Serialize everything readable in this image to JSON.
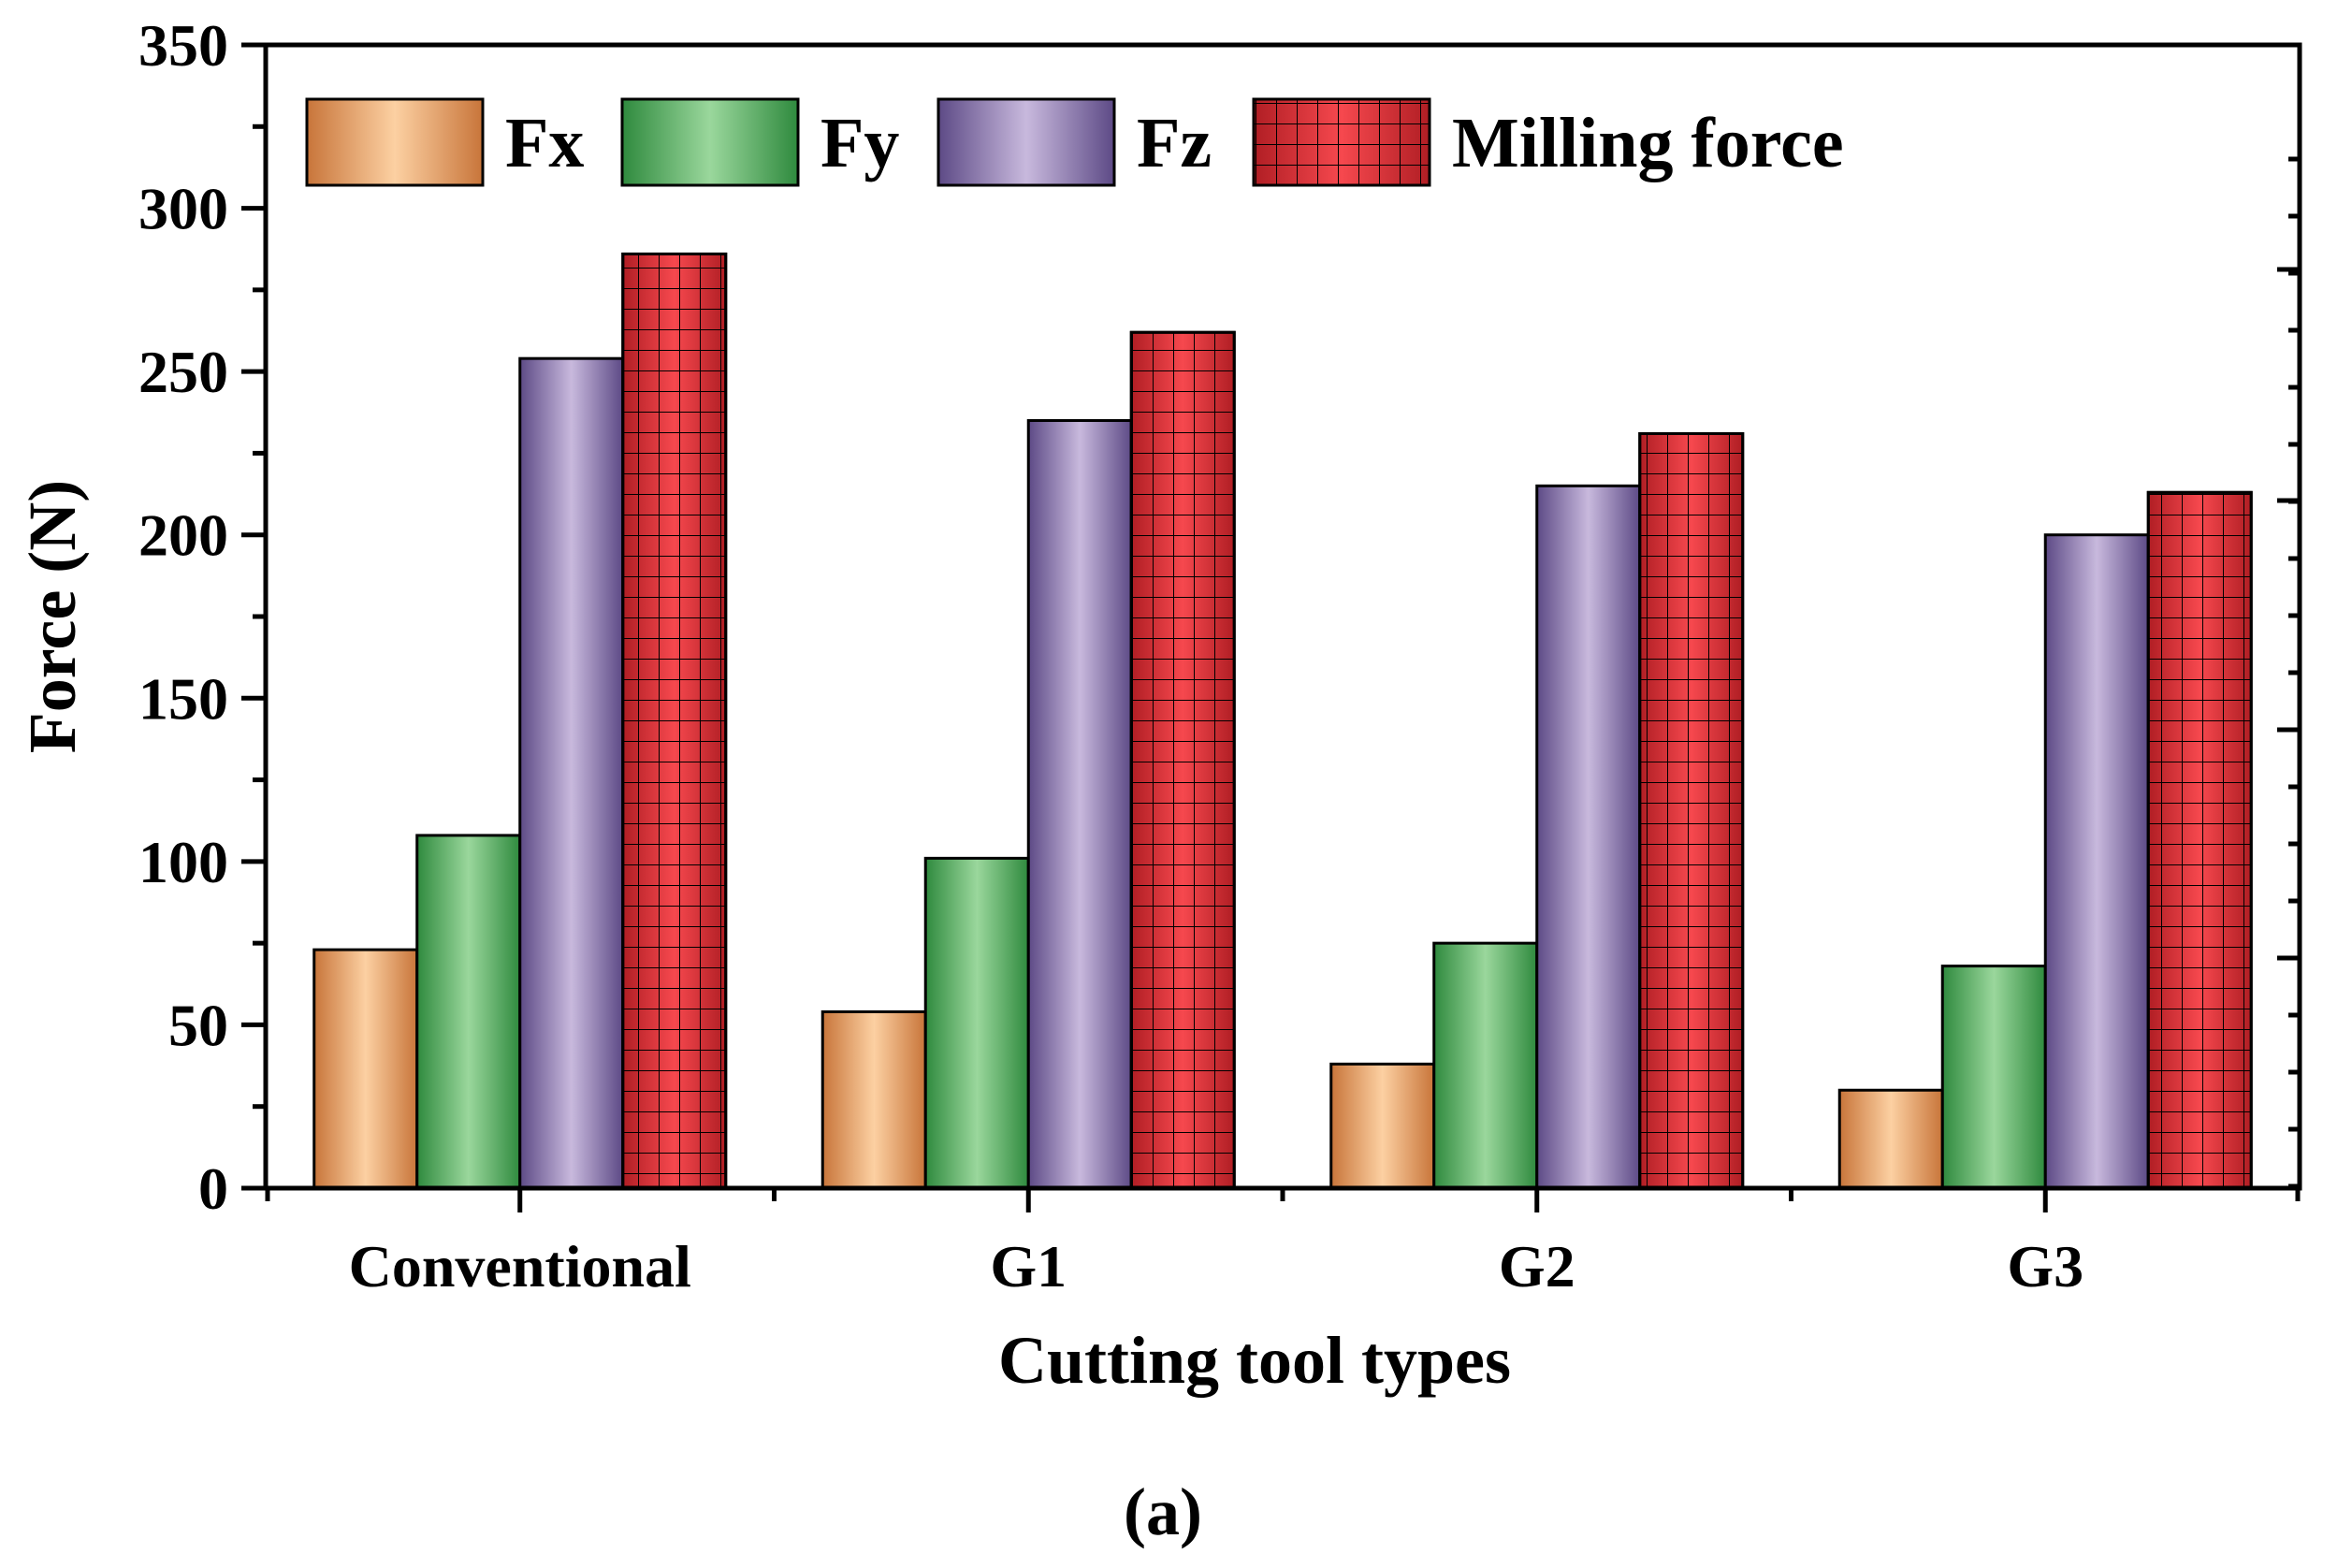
{
  "chart_data": {
    "type": "bar",
    "title": "",
    "xlabel": "Cutting tool types",
    "ylabel": "Force (N)",
    "ylim": [
      0,
      350
    ],
    "yticks": [
      0,
      50,
      100,
      150,
      200,
      250,
      300,
      350
    ],
    "categories": [
      "Conventional",
      "G1",
      "G2",
      "G3"
    ],
    "series": [
      {
        "name": "Fx",
        "values": [
          73,
          54,
          38,
          30
        ]
      },
      {
        "name": "Fy",
        "values": [
          108,
          101,
          75,
          68
        ]
      },
      {
        "name": "Fz",
        "values": [
          254,
          235,
          215,
          200
        ]
      },
      {
        "name": "Milling force",
        "values": [
          286,
          262,
          231,
          213
        ]
      }
    ],
    "legend_position": "top-left",
    "grid": false,
    "colors": {
      "Fx": {
        "edge": "#c8753a",
        "mid": "#fcd0a2"
      },
      "Fy": {
        "edge": "#2f8a3e",
        "mid": "#9ad79c"
      },
      "Fz": {
        "edge": "#5d4a86",
        "mid": "#c8b9dd"
      },
      "Milling force": {
        "edge": "#b01e24",
        "mid": "#f6484e"
      }
    }
  },
  "figure": {
    "panel_label": "(a)"
  }
}
